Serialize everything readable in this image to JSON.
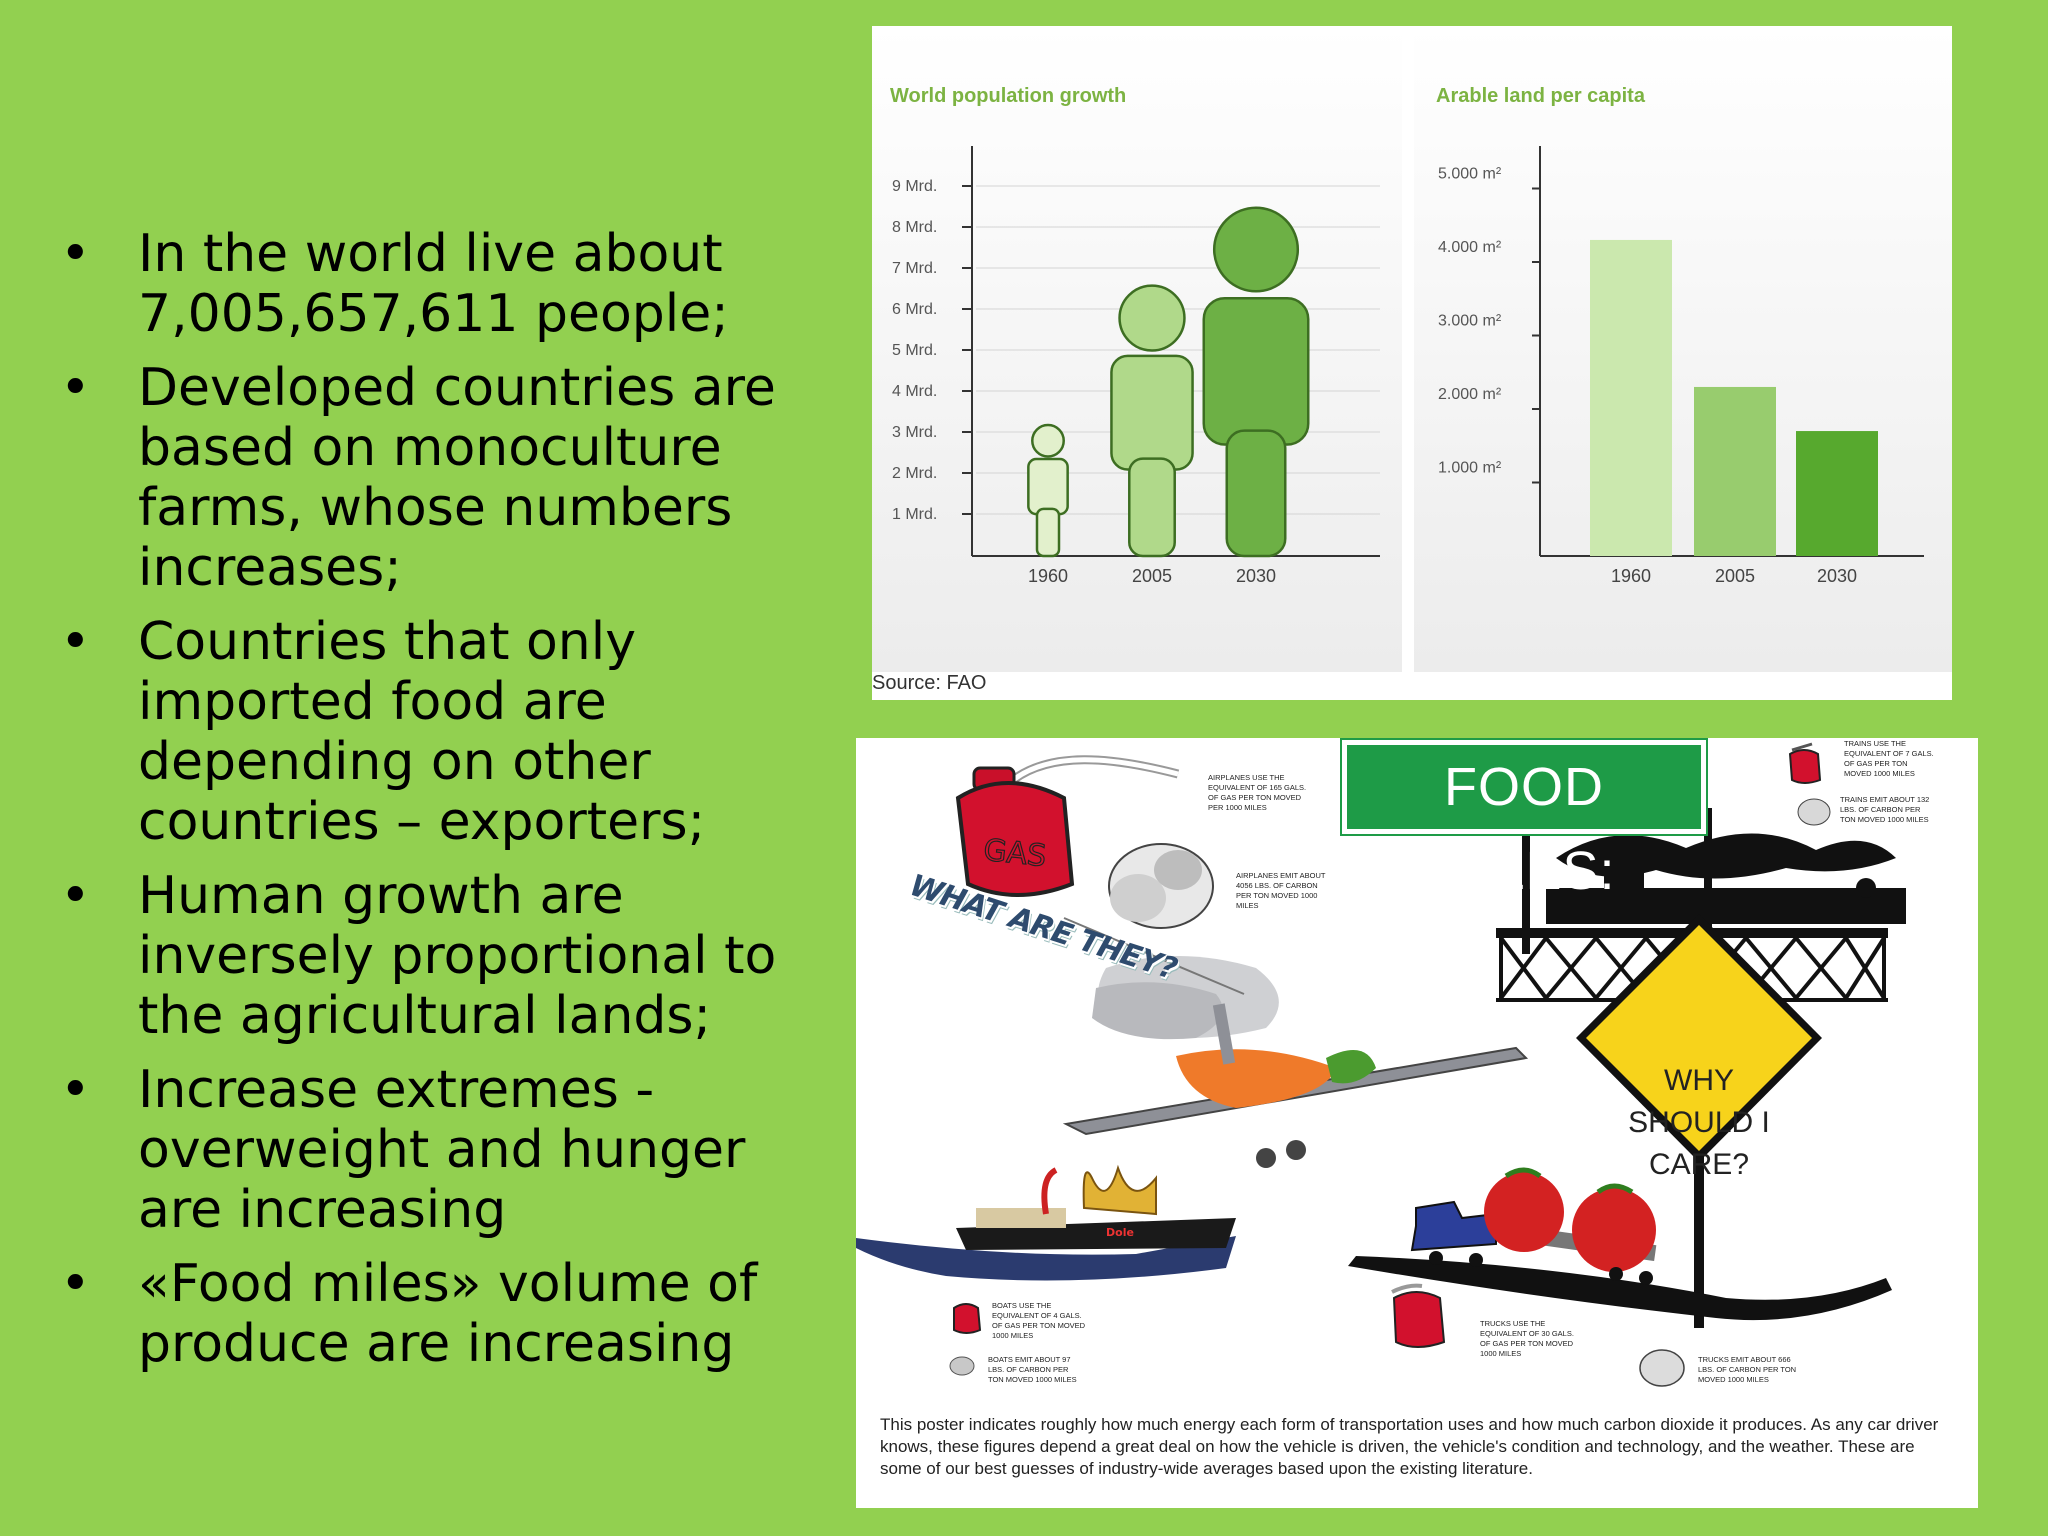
{
  "bullets": [
    "In the world live about 7,005,657,611 people;",
    "Developed countries are based on monoculture farms, whose numbers increases;",
    "Countries that only imported food are depending on other countries – exporters;",
    "Human growth are inversely proportional to the agricultural lands;",
    "Increase extremes - overweight and hunger are increasing",
    "«Food miles» volume of produce are increasing"
  ],
  "charts": {
    "source": "Source: FAO",
    "population": {
      "title": "World population growth",
      "y_ticks": [
        "1 Mrd.",
        "2 Mrd.",
        "3 Mrd.",
        "4 Mrd.",
        "5 Mrd.",
        "6 Mrd.",
        "7 Mrd.",
        "8 Mrd.",
        "9 Mrd."
      ],
      "x_labels": [
        "1960",
        "2005",
        "2030"
      ]
    },
    "arable": {
      "title": "Arable land per capita",
      "y_ticks": [
        "1.000 m²",
        "2.000 m²",
        "3.000 m²",
        "4.000 m²",
        "5.000 m²"
      ],
      "x_labels": [
        "1960",
        "2005",
        "2030"
      ]
    }
  },
  "chart_data": [
    {
      "type": "bar",
      "title": "World population growth",
      "categories": [
        "1960",
        "2005",
        "2030"
      ],
      "values": [
        3.0,
        6.4,
        8.3
      ],
      "ylim": [
        0,
        10
      ],
      "colors": [
        "#e2f0cc",
        "#b0d98a",
        "#6db045"
      ]
    },
    {
      "type": "bar",
      "title": "Arable land per capita",
      "categories": [
        "1960",
        "2005",
        "2030"
      ],
      "values": [
        4300,
        2300,
        1700
      ],
      "ylim": [
        0,
        5500
      ],
      "colors": [
        "#cbe8ae",
        "#98cc6e",
        "#57a92e"
      ]
    }
  ],
  "poster": {
    "sign": "FOOD MILES:",
    "question": "WHAT ARE THEY?",
    "why": [
      "WHY",
      "SHOULD I",
      "CARE?"
    ],
    "gas_label": "GAS",
    "dole_label": "Dole",
    "airplane_gas": [
      "AIRPLANES USE THE",
      "EQUIVALENT OF 165 GALS.",
      "OF GAS PER TON MOVED",
      "PER 1000 MILES"
    ],
    "airplane_carbon": [
      "AIRPLANES EMIT ABOUT",
      "4056 LBS. OF CARBON",
      "PER TON MOVED 1000",
      "MILES"
    ],
    "train_gas": [
      "TRAINS USE THE",
      "EQUIVALENT OF 7 GALS.",
      "OF GAS PER TON",
      "MOVED 1000 MILES"
    ],
    "train_carbon": [
      "TRAINS EMIT ABOUT 132",
      "LBS. OF CARBON PER",
      "TON MOVED 1000 MILES"
    ],
    "boat_gas": [
      "BOATS USE THE",
      "EQUIVALENT OF 4 GALS.",
      "OF GAS PER TON MOVED",
      "1000 MILES"
    ],
    "boat_carbon": [
      "BOATS EMIT ABOUT 97",
      "LBS. OF CARBON PER",
      "TON MOVED 1000 MILES"
    ],
    "truck_gas": [
      "TRUCKS USE THE",
      "EQUIVALENT OF 30 GALS.",
      "OF GAS PER TON MOVED",
      "1000 MILES"
    ],
    "truck_carbon": [
      "TRUCKS EMIT ABOUT 666",
      "LBS. OF CARBON PER TON",
      "MOVED 1000 MILES"
    ],
    "caption": "This poster indicates roughly how much energy each form of transportation uses and how much carbon dioxide it produces. As any car driver knows, these figures depend a great deal on how the vehicle is driven, the vehicle's condition and technology, and the weather. These are some of our best guesses of industry-wide averages based upon the existing literature."
  }
}
